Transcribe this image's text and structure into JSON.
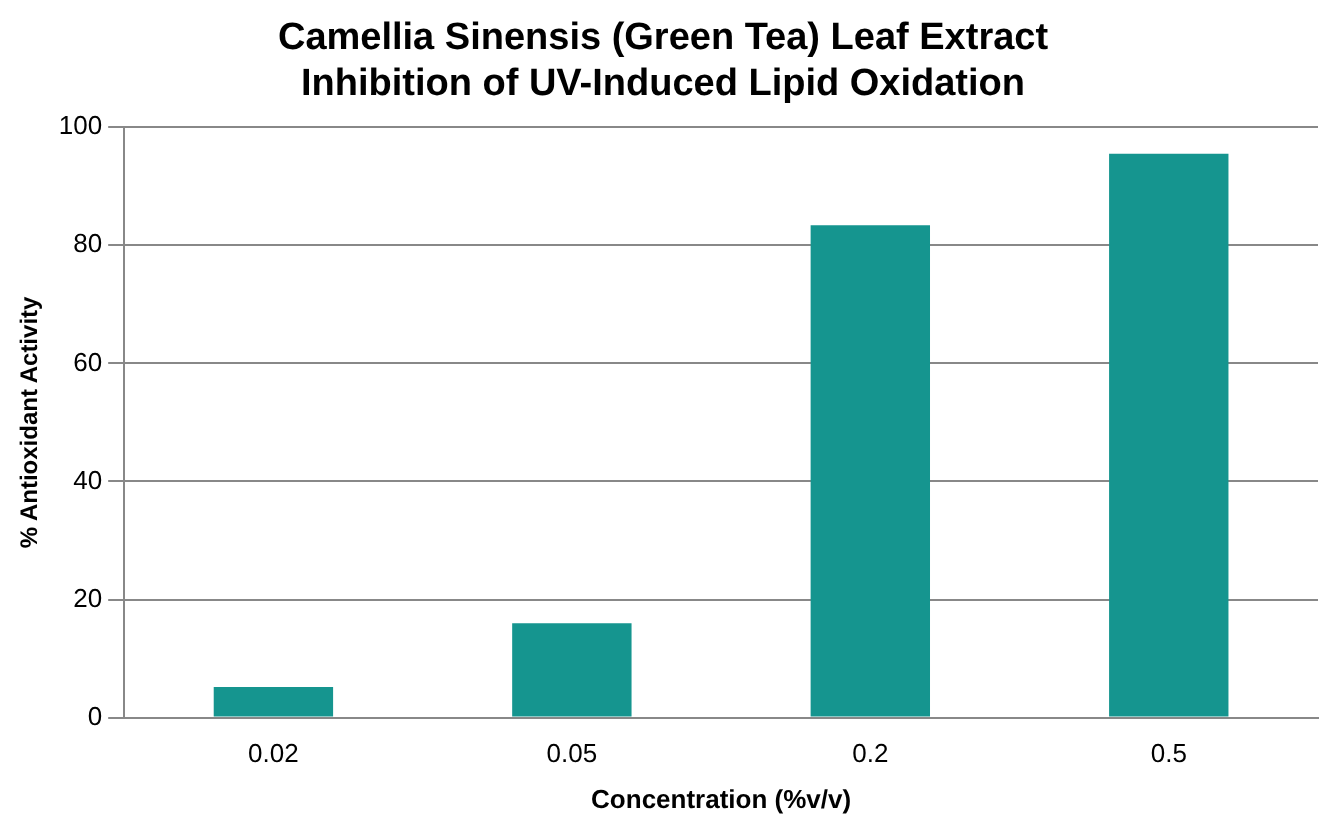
{
  "chart_data": {
    "type": "bar",
    "title": "Camellia Sinensis (Green Tea) Leaf Extract\nInhibition of UV-Induced Lipid Oxidation",
    "xlabel": "Concentration (%v/v)",
    "ylabel": "% Antioxidant Activity",
    "categories": [
      "0.02",
      "0.05",
      "0.2",
      "0.5"
    ],
    "values": [
      5.2,
      16,
      83.4,
      95.5
    ],
    "color": "#15958f",
    "ylim": [
      0,
      100
    ],
    "yticks": [
      0,
      20,
      40,
      60,
      80,
      100
    ],
    "grid": "y"
  }
}
